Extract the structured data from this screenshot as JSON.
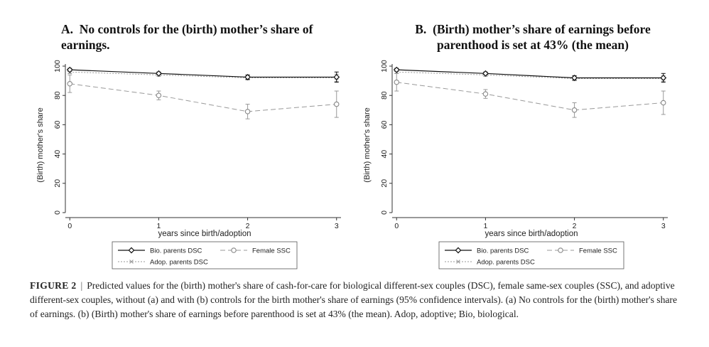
{
  "chart_data": [
    {
      "type": "line",
      "panel": "A.",
      "title": "No controls for the (birth) mother’s share of earnings.",
      "xlabel": "years since birth/adoption",
      "ylabel": "(Birth) mother's share",
      "x": [
        0,
        1,
        2,
        3
      ],
      "xticks": [
        "0",
        "1",
        "2",
        "3"
      ],
      "yticks": [
        "0",
        "20",
        "40",
        "60",
        "80",
        "100"
      ],
      "xlim": [
        -0.05,
        3.05
      ],
      "ylim": [
        0,
        100
      ],
      "series": [
        {
          "name": "Bio. parents DSC",
          "style": "solid-diamond",
          "values": [
            97.5,
            95,
            92.5,
            92.5
          ],
          "ci_low": [
            96.5,
            94,
            91,
            89
          ],
          "ci_high": [
            98.5,
            96,
            94,
            96
          ]
        },
        {
          "name": "Adop. parents DSC",
          "style": "dotted-x",
          "values": [
            96,
            94,
            92,
            92
          ],
          "ci_low": [
            95,
            93,
            90.5,
            89.5
          ],
          "ci_high": [
            97,
            95,
            93.5,
            94.5
          ]
        },
        {
          "name": "Female SSC",
          "style": "dashed-circle",
          "values": [
            88,
            80,
            69,
            74
          ],
          "ci_low": [
            82,
            77,
            64,
            65
          ],
          "ci_high": [
            94,
            83,
            74,
            83
          ]
        }
      ]
    },
    {
      "type": "line",
      "panel": "B.",
      "title": "(Birth) mother’s share of earnings before parenthood is set at 43% (the mean)",
      "xlabel": "years since birth/adoption",
      "ylabel": "(Birth) mother's share",
      "x": [
        0,
        1,
        2,
        3
      ],
      "xticks": [
        "0",
        "1",
        "2",
        "3"
      ],
      "yticks": [
        "0",
        "20",
        "40",
        "60",
        "80",
        "100"
      ],
      "xlim": [
        -0.05,
        3.05
      ],
      "ylim": [
        0,
        100
      ],
      "series": [
        {
          "name": "Bio. parents DSC",
          "style": "solid-diamond",
          "values": [
            97.5,
            95,
            92,
            92
          ],
          "ci_low": [
            96.5,
            94,
            90.5,
            89
          ],
          "ci_high": [
            98.5,
            96,
            93.5,
            95
          ]
        },
        {
          "name": "Adop. parents DSC",
          "style": "dotted-x",
          "values": [
            96,
            94,
            91.5,
            91.5
          ],
          "ci_low": [
            95,
            93,
            90,
            89.5
          ],
          "ci_high": [
            97,
            95,
            93,
            93.5
          ]
        },
        {
          "name": "Female SSC",
          "style": "dashed-circle",
          "values": [
            89,
            81,
            70,
            75
          ],
          "ci_low": [
            83,
            78,
            65,
            67
          ],
          "ci_high": [
            95,
            84,
            75,
            83
          ]
        }
      ]
    }
  ],
  "caption": {
    "label": "FIGURE 2",
    "separator": "|",
    "text": "Predicted values for the (birth) mother's share of cash-for-care for biological different-sex couples (DSC), female same-sex couples (SSC), and adoptive different-sex couples, without (a) and with (b) controls for the birth mother's share of earnings (95% confidence intervals). (a) No controls for the (birth) mother's share of earnings. (b) (Birth) mother's share of earnings before parenthood is set at 43% (the mean). Adop, adoptive; Bio, biological."
  }
}
